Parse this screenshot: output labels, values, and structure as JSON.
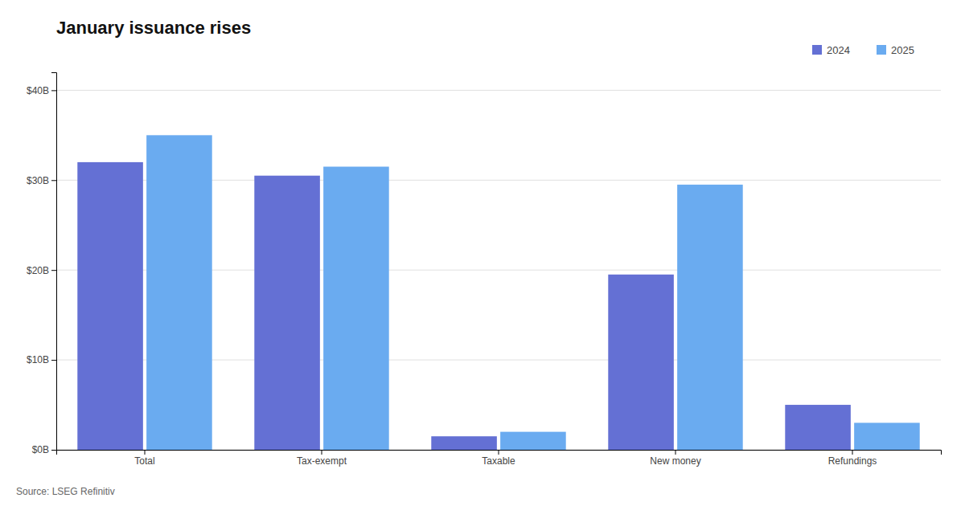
{
  "chart_data": {
    "type": "bar",
    "title": "January issuance rises",
    "categories": [
      "Total",
      "Tax-exempt",
      "Taxable",
      "New money",
      "Refundings"
    ],
    "series": [
      {
        "name": "2024",
        "color": "#6470D4",
        "values": [
          32.0,
          30.5,
          1.5,
          19.5,
          5.0
        ]
      },
      {
        "name": "2025",
        "color": "#6AABF0",
        "values": [
          35.0,
          31.5,
          2.0,
          29.5,
          3.0
        ]
      }
    ],
    "ylim": [
      0,
      42
    ],
    "yticks": [
      {
        "value": 0,
        "label": "$0B"
      },
      {
        "value": 10,
        "label": "$10B"
      },
      {
        "value": 20,
        "label": "$20B"
      },
      {
        "value": 30,
        "label": "$30B"
      },
      {
        "value": 40,
        "label": "$40B"
      }
    ],
    "grid": true,
    "legend": "upper right",
    "source": "Source: LSEG Refinitiv"
  }
}
